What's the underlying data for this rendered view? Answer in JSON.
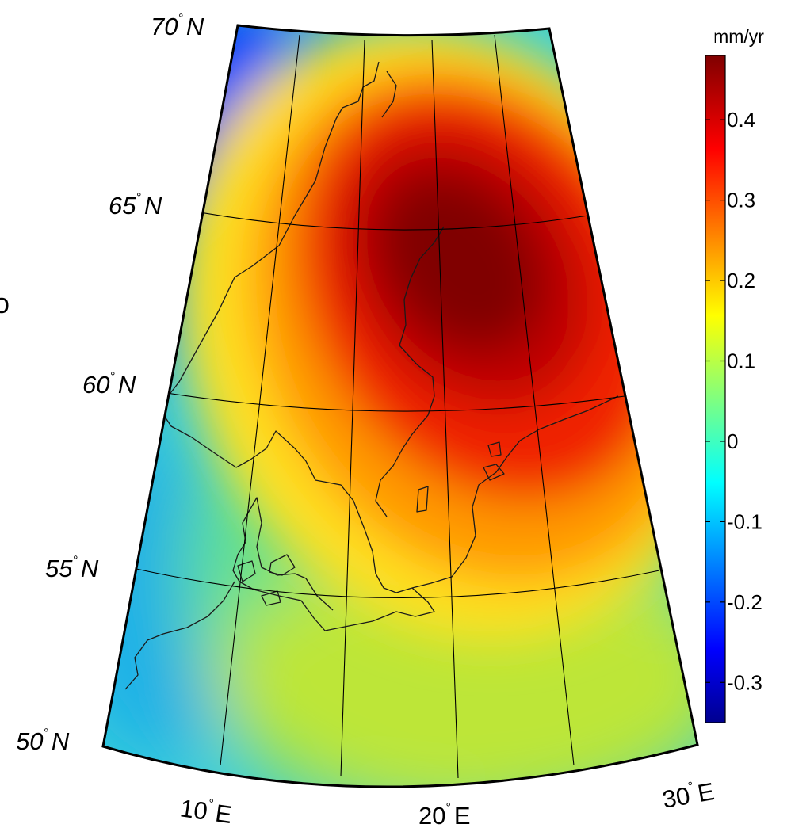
{
  "colorbar": {
    "unit": "mm/yr",
    "min": -0.35,
    "max": 0.48,
    "ticks": [
      {
        "value": 0.4,
        "label": "0.4"
      },
      {
        "value": 0.3,
        "label": "0.3"
      },
      {
        "value": 0.2,
        "label": "0.2"
      },
      {
        "value": 0.1,
        "label": "0.1"
      },
      {
        "value": 0.0,
        "label": "0"
      },
      {
        "value": -0.1,
        "label": "-0.1"
      },
      {
        "value": -0.2,
        "label": "-0.2"
      },
      {
        "value": -0.3,
        "label": "-0.3"
      }
    ],
    "colormap": "jet"
  },
  "map": {
    "lon_range": [
      5,
      30
    ],
    "lat_range": [
      50,
      70
    ],
    "lat_labels": [
      {
        "deg": "70",
        "dir": "N"
      },
      {
        "deg": "65",
        "dir": "N"
      },
      {
        "deg": "60",
        "dir": "N"
      },
      {
        "deg": "55",
        "dir": "N"
      },
      {
        "deg": "50",
        "dir": "N"
      }
    ],
    "lon_labels": [
      {
        "deg": "10",
        "dir": "E"
      },
      {
        "deg": "20",
        "dir": "E"
      },
      {
        "deg": "30",
        "dir": "E"
      }
    ],
    "uplift_peak": {
      "lon": 20,
      "lat": 63.5,
      "value": 0.48
    }
  }
}
